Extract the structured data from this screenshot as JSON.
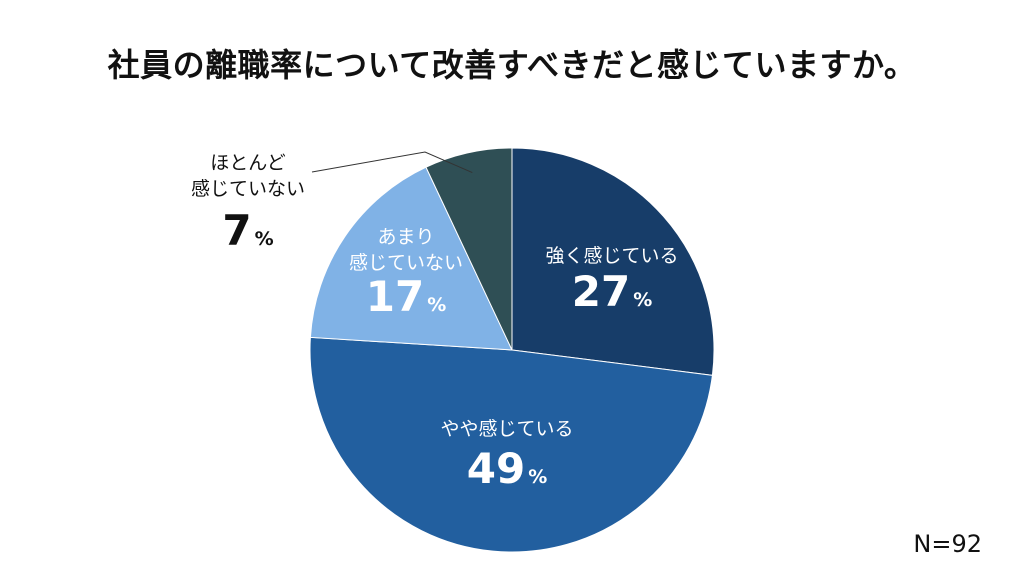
{
  "chart_data": {
    "type": "pie",
    "title": "社員の離職率について改善すべきだと感じていますか。",
    "sample_size_label": "N=92",
    "start_angle_deg": 0,
    "direction": "clockwise",
    "slices": [
      {
        "label_lines": [
          "強く感じている"
        ],
        "value": 27,
        "value_text": "27",
        "unit": "%",
        "color": "#173d69",
        "label_color": "#ffffff",
        "label_placement": "inside"
      },
      {
        "label_lines": [
          "やや感じている"
        ],
        "value": 49,
        "value_text": "49",
        "unit": "%",
        "color": "#225f9f",
        "label_color": "#ffffff",
        "label_placement": "inside"
      },
      {
        "label_lines": [
          "あまり",
          "感じていない"
        ],
        "value": 17,
        "value_text": "17",
        "unit": "%",
        "color": "#80b2e6",
        "label_color": "#ffffff",
        "label_placement": "inside"
      },
      {
        "label_lines": [
          "ほとんど",
          "感じていない"
        ],
        "value": 7,
        "value_text": "7",
        "unit": "%",
        "color": "#2f4f55",
        "label_color": "#111111",
        "label_placement": "outside"
      }
    ]
  }
}
